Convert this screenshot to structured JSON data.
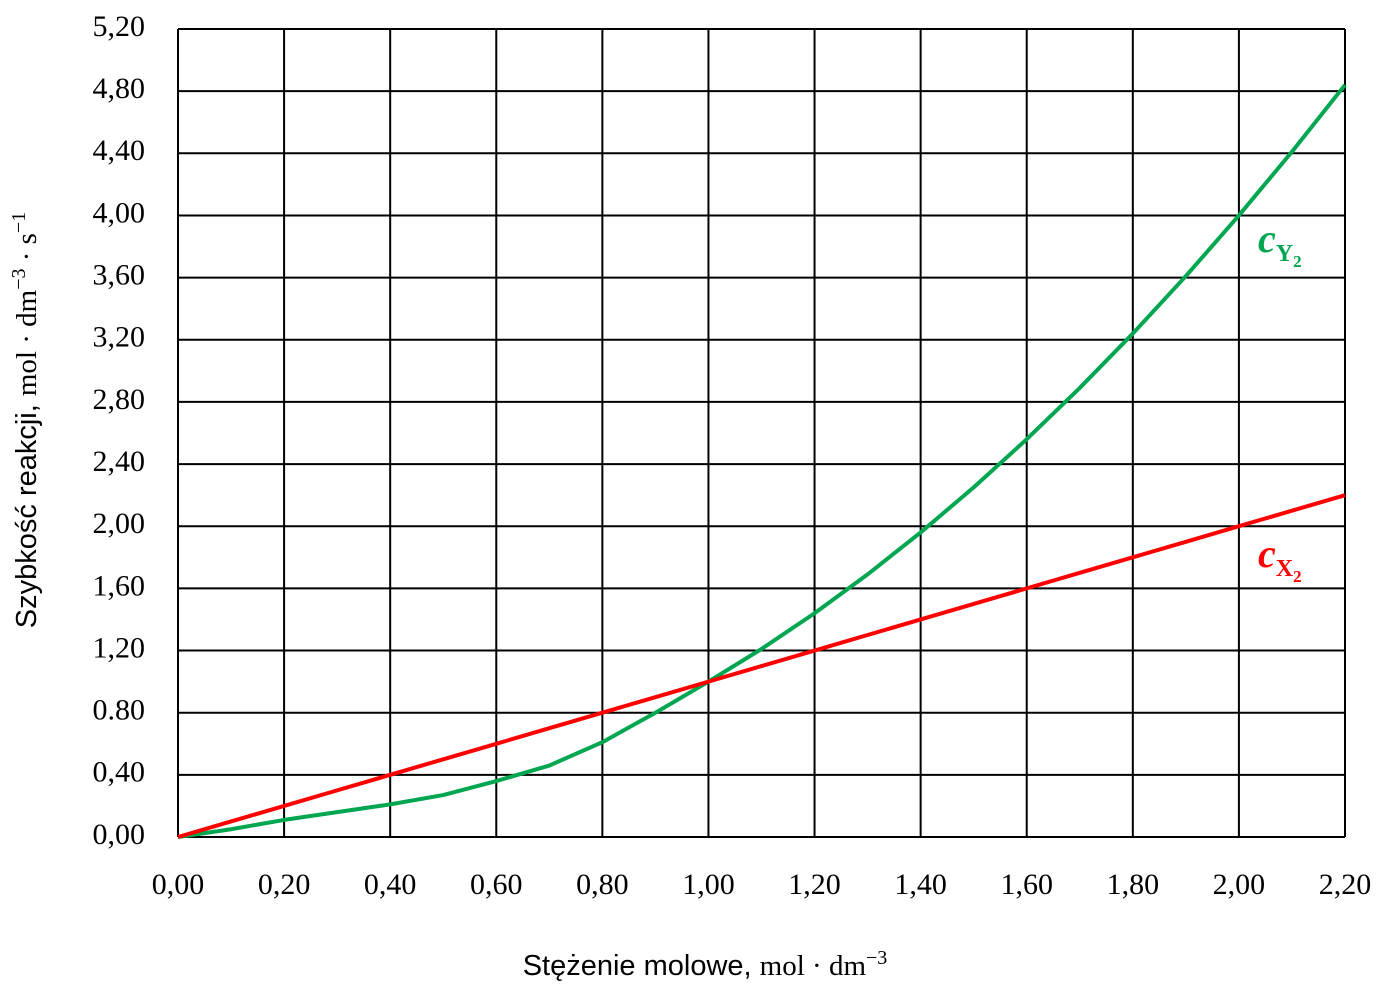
{
  "chart_data": {
    "type": "line",
    "xlabel": [
      "Stężenie molowe, ",
      "mol · dm",
      "−3"
    ],
    "ylabel": [
      "Szybkość reakcji, ",
      "mol · dm",
      "−3",
      " · s",
      "−1"
    ],
    "x": [
      0,
      0.1,
      0.2,
      0.3,
      0.4,
      0.5,
      0.6,
      0.7,
      0.8,
      0.9,
      1.0,
      1.1,
      1.2,
      1.3,
      1.4,
      1.5,
      1.6,
      1.7,
      1.8,
      1.9,
      2.0,
      2.1,
      2.2
    ],
    "series": [
      {
        "name": [
          "c",
          "Y",
          "2"
        ],
        "color": "#00a650",
        "values": [
          0,
          0.05,
          0.11,
          0.16,
          0.21,
          0.27,
          0.36,
          0.46,
          0.61,
          0.8,
          1.0,
          1.21,
          1.44,
          1.69,
          1.96,
          2.25,
          2.56,
          2.89,
          3.24,
          3.61,
          4.0,
          4.41,
          4.84
        ]
      },
      {
        "name": [
          "c",
          "X",
          "2"
        ],
        "color": "#ff0000",
        "values": [
          0,
          0.1,
          0.2,
          0.3,
          0.4,
          0.5,
          0.6,
          0.7,
          0.8,
          0.9,
          1.0,
          1.1,
          1.2,
          1.3,
          1.4,
          1.5,
          1.6,
          1.7,
          1.8,
          1.9,
          2.0,
          2.1,
          2.2
        ]
      }
    ],
    "xlim": [
      0,
      2.2
    ],
    "xticks": [
      {
        "value": 0,
        "label": "0,00"
      },
      {
        "value": 0.2,
        "label": "0,20"
      },
      {
        "value": 0.4,
        "label": "0,40"
      },
      {
        "value": 0.6,
        "label": "0,60"
      },
      {
        "value": 0.8,
        "label": "0,80"
      },
      {
        "value": 1.0,
        "label": "1,00"
      },
      {
        "value": 1.2,
        "label": "1,20"
      },
      {
        "value": 1.4,
        "label": "1,40"
      },
      {
        "value": 1.6,
        "label": "1,60"
      },
      {
        "value": 1.8,
        "label": "1,80"
      },
      {
        "value": 2.0,
        "label": "2,00"
      },
      {
        "value": 2.2,
        "label": "2,20"
      }
    ],
    "ylim": [
      0,
      5.2
    ],
    "yticks": [
      {
        "value": 0,
        "label": "0,00"
      },
      {
        "value": 0.4,
        "label": "0,40"
      },
      {
        "value": 0.8,
        "label": "0.80"
      },
      {
        "value": 1.2,
        "label": "1,20"
      },
      {
        "value": 1.6,
        "label": "1,60"
      },
      {
        "value": 2.0,
        "label": "2,00"
      },
      {
        "value": 2.4,
        "label": "2,40"
      },
      {
        "value": 2.8,
        "label": "2,80"
      },
      {
        "value": 3.2,
        "label": "3,20"
      },
      {
        "value": 3.6,
        "label": "3,60"
      },
      {
        "value": 4.0,
        "label": "4,00"
      },
      {
        "value": 4.4,
        "label": "4,40"
      },
      {
        "value": 4.8,
        "label": "4,80"
      },
      {
        "value": 5.2,
        "label": "5,20"
      }
    ],
    "grid": true
  }
}
